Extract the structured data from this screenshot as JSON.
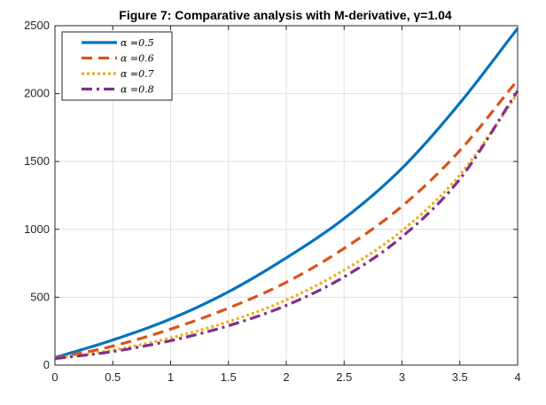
{
  "chart_data": {
    "type": "line",
    "title": "Figure 7: Comparative analysis with M-derivative, γ=1.04",
    "xlabel": "",
    "ylabel": "",
    "xlim": [
      0,
      4
    ],
    "ylim": [
      0,
      2500
    ],
    "xticks": [
      0,
      0.5,
      1,
      1.5,
      2,
      2.5,
      3,
      3.5,
      4
    ],
    "xtick_labels": [
      "0",
      "0.5",
      "1",
      "1.5",
      "2",
      "2.5",
      "3",
      "3.5",
      "4"
    ],
    "yticks": [
      0,
      500,
      1000,
      1500,
      2000,
      2500
    ],
    "ytick_labels": [
      "0",
      "500",
      "1000",
      "1500",
      "2000",
      "2500"
    ],
    "grid": true,
    "legend_position": "top-left",
    "x": [
      0,
      0.5,
      1,
      1.5,
      2,
      2.5,
      3,
      3.5,
      4
    ],
    "series": [
      {
        "name": "α =0.5",
        "color": "#0072BD",
        "dash": "solid",
        "values": [
          55,
          185,
          340,
          540,
          790,
          1080,
          1450,
          1930,
          2480
        ]
      },
      {
        "name": "α =0.6",
        "color": "#D95319",
        "dash": "dashed",
        "values": [
          50,
          140,
          265,
          420,
          610,
          860,
          1170,
          1580,
          2100
        ]
      },
      {
        "name": "α =0.7",
        "color": "#EDB120",
        "dash": "dotted",
        "values": [
          48,
          110,
          200,
          320,
          480,
          700,
          990,
          1400,
          2000
        ]
      },
      {
        "name": "α =0.8",
        "color": "#7E2F8E",
        "dash": "dashdot",
        "values": [
          48,
          100,
          180,
          290,
          440,
          650,
          945,
          1370,
          2020
        ]
      }
    ]
  }
}
